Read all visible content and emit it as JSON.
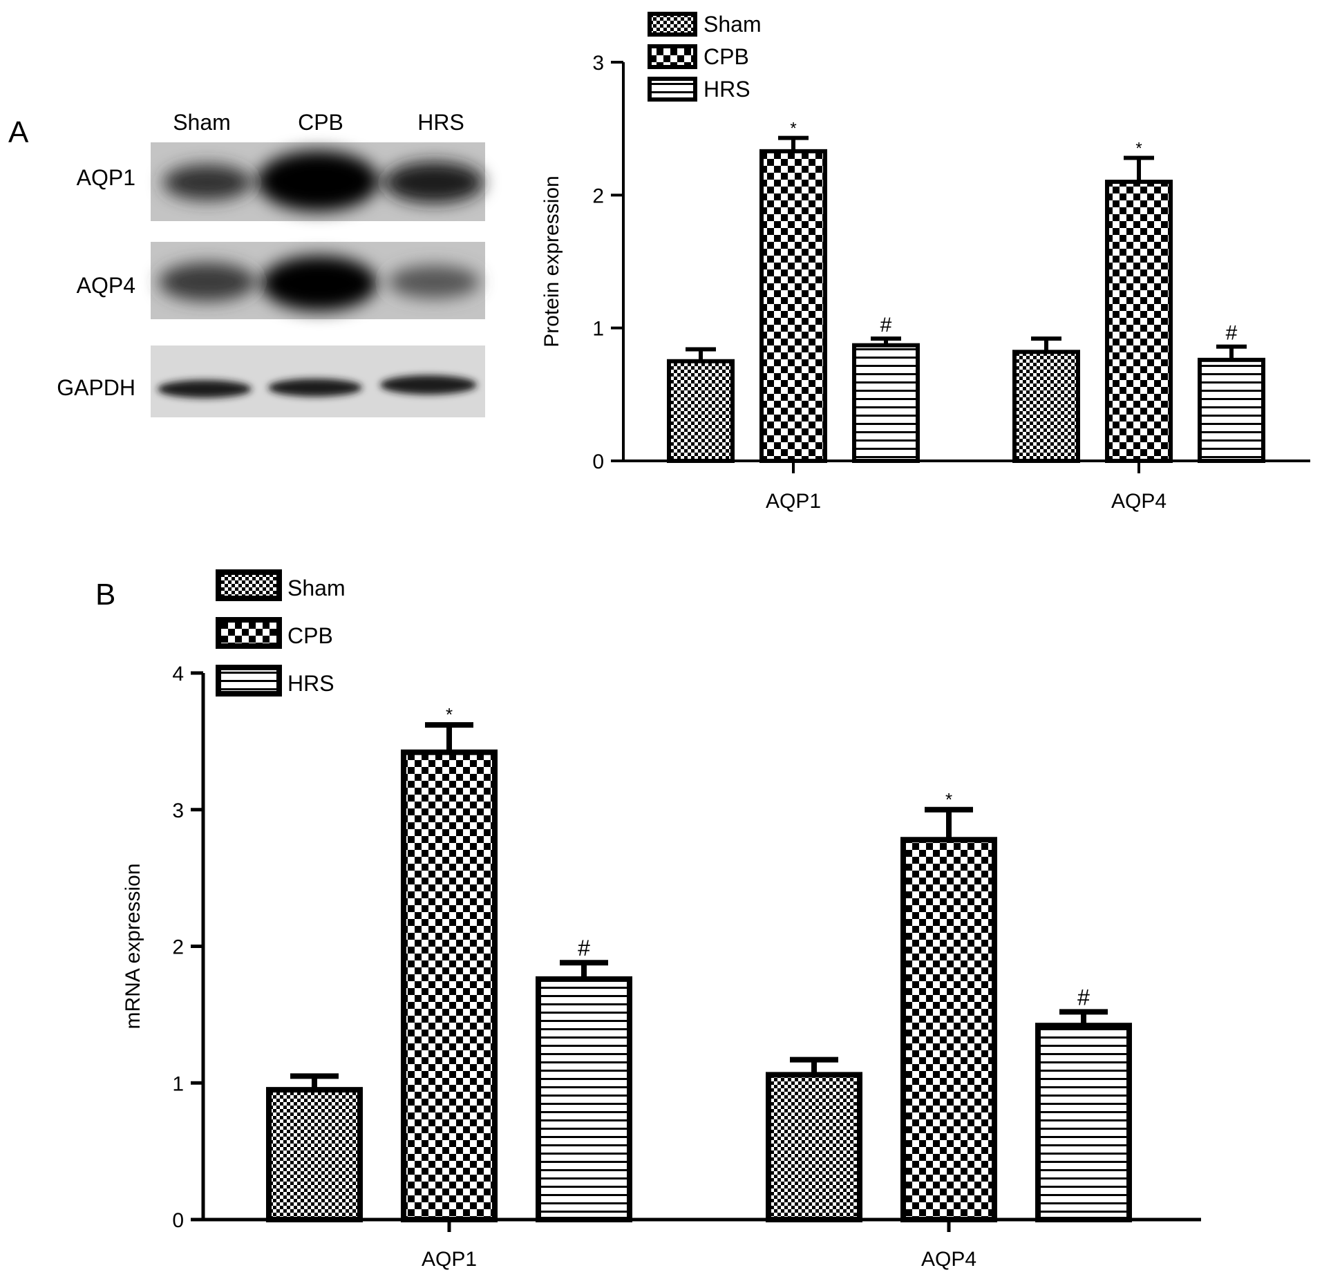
{
  "colors": {
    "ink": "#000000",
    "background": "#ffffff",
    "blot_background": "#bdbdbd"
  },
  "panel_a": {
    "panel_label": "A",
    "blot": {
      "column_labels": [
        "Sham",
        "CPB",
        "HRS"
      ],
      "row_labels": [
        "AQP1",
        "AQP4",
        "GAPDH"
      ]
    }
  },
  "panel_b": {
    "panel_label": "B"
  },
  "chart_data": [
    {
      "type": "bar",
      "categories": [
        "AQP1",
        "AQP4"
      ],
      "series": [
        {
          "name": "Sham",
          "pattern": "fine-checker",
          "values": [
            0.75,
            0.82
          ],
          "errors": [
            0.09,
            0.1
          ],
          "markers": [
            "",
            ""
          ]
        },
        {
          "name": "CPB",
          "pattern": "checker",
          "values": [
            2.33,
            2.1
          ],
          "errors": [
            0.1,
            0.18
          ],
          "markers": [
            "*",
            "*"
          ]
        },
        {
          "name": "HRS",
          "pattern": "horizontal-stripes",
          "values": [
            0.87,
            0.76
          ],
          "errors": [
            0.05,
            0.1
          ],
          "markers": [
            "#",
            "#"
          ]
        }
      ],
      "xlabel": "",
      "ylabel": "Protein expression",
      "ylim": [
        0,
        3
      ],
      "yticks": [
        "0",
        "1",
        "2",
        "3"
      ],
      "legend": "top-left",
      "grid": false
    },
    {
      "type": "bar",
      "categories": [
        "AQP1",
        "AQP4"
      ],
      "series": [
        {
          "name": "Sham",
          "pattern": "fine-checker",
          "values": [
            0.95,
            1.06
          ],
          "errors": [
            0.1,
            0.11
          ],
          "markers": [
            "",
            ""
          ]
        },
        {
          "name": "CPB",
          "pattern": "checker",
          "values": [
            3.42,
            2.78
          ],
          "errors": [
            0.2,
            0.22
          ],
          "markers": [
            "*",
            "*"
          ]
        },
        {
          "name": "HRS",
          "pattern": "horizontal-stripes",
          "values": [
            1.76,
            1.42
          ],
          "errors": [
            0.12,
            0.1
          ],
          "markers": [
            "#",
            "#"
          ]
        }
      ],
      "xlabel": "",
      "ylabel": "mRNA expression",
      "ylim": [
        0,
        4
      ],
      "yticks": [
        "0",
        "1",
        "2",
        "3",
        "4"
      ],
      "legend": "top-left",
      "grid": false
    }
  ]
}
